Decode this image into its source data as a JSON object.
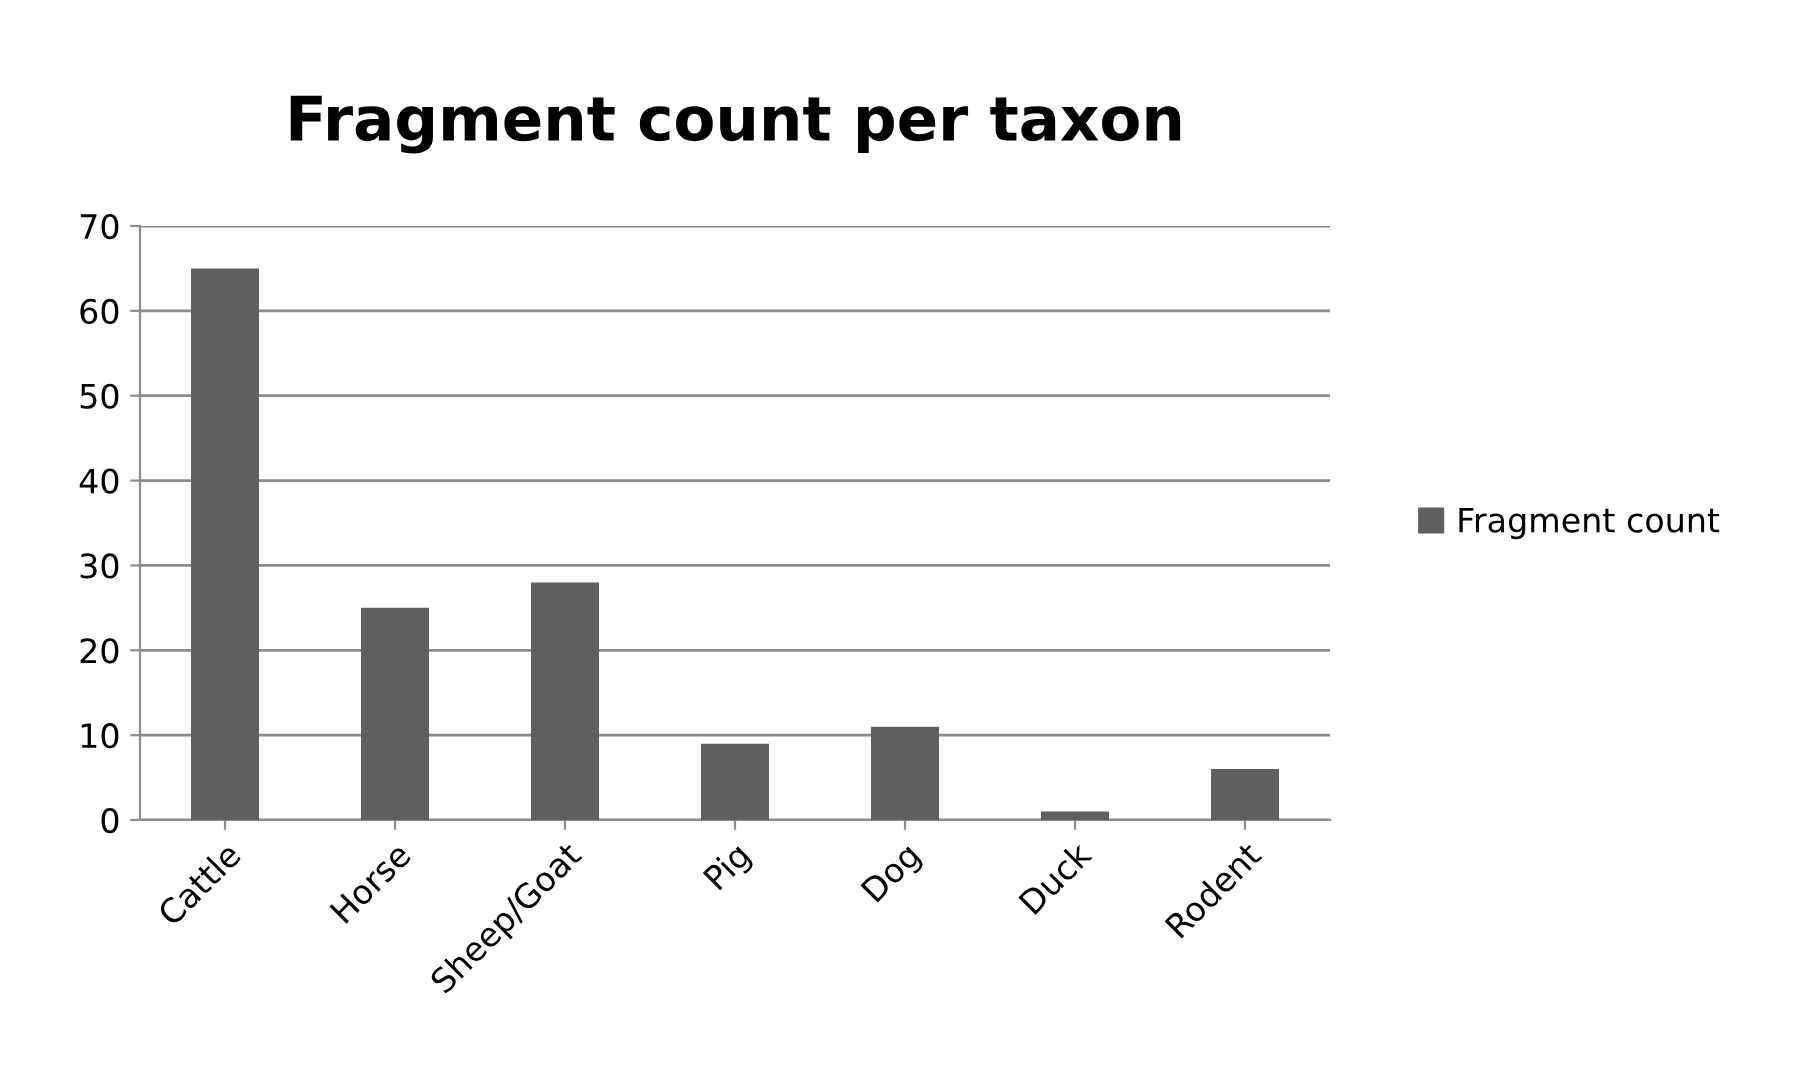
{
  "chart_data": {
    "type": "bar",
    "title": "Fragment count per taxon",
    "categories": [
      "Cattle",
      "Horse",
      "Sheep/Goat",
      "Pig",
      "Dog",
      "Duck",
      "Rodent"
    ],
    "series": [
      {
        "name": "Fragment count",
        "color": "#5f5f5f",
        "values": [
          65,
          25,
          28,
          9,
          11,
          1,
          6
        ]
      }
    ],
    "ylim": [
      0,
      70
    ],
    "yticks": [
      0,
      10,
      20,
      30,
      40,
      50,
      60,
      70
    ],
    "grid": "y",
    "legend": "right"
  }
}
